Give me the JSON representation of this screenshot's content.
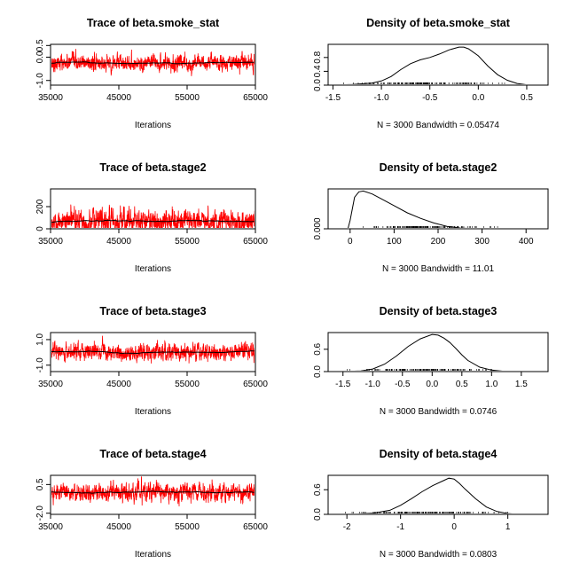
{
  "chart_data": [
    {
      "type": "line",
      "title": "Trace of beta.smoke_stat",
      "xlabel": "Iterations",
      "ylabel": "",
      "xlim": [
        35000,
        65000
      ],
      "ylim": [
        -1.2,
        0.55
      ],
      "xticks": [
        "35000",
        "45000",
        "55000",
        "65000"
      ],
      "yticks": [
        "-1.0",
        "0.0",
        "0.5"
      ],
      "series": [
        {
          "values": {
            "mean": -0.25,
            "sd": 0.2,
            "min": -1.1,
            "max": 0.5
          },
          "color": "#ff0000"
        }
      ],
      "trend_color": "#000000"
    },
    {
      "type": "line",
      "title": "Density of beta.smoke_stat",
      "xlabel": "N = 3000   Bandwidth = 0.05474",
      "ylabel": "",
      "xlim": [
        -1.55,
        0.72
      ],
      "ylim": [
        0,
        1.18
      ],
      "xticks": [
        "-1.5",
        "-1.0",
        "-0.5",
        "0.0",
        "0.5"
      ],
      "yticks": [
        "0.0",
        "0.4",
        "0.8"
      ],
      "series": [
        {
          "x": [
            -1.5,
            -1.3,
            -1.1,
            -1.0,
            -0.9,
            -0.8,
            -0.7,
            -0.6,
            -0.5,
            -0.4,
            -0.3,
            -0.2,
            -0.15,
            -0.1,
            0.0,
            0.1,
            0.2,
            0.3,
            0.4,
            0.5
          ],
          "y": [
            0.0,
            0.02,
            0.06,
            0.12,
            0.25,
            0.45,
            0.62,
            0.73,
            0.8,
            0.9,
            1.02,
            1.1,
            1.1,
            1.05,
            0.85,
            0.55,
            0.3,
            0.14,
            0.05,
            0.01
          ]
        }
      ]
    },
    {
      "type": "line",
      "title": "Trace of beta.stage2",
      "xlabel": "Iterations",
      "ylabel": "",
      "xlim": [
        35000,
        65000
      ],
      "ylim": [
        0,
        360
      ],
      "xticks": [
        "35000",
        "45000",
        "55000",
        "65000"
      ],
      "yticks": [
        "0",
        "200"
      ],
      "series": [
        {
          "values": {
            "mean": 70,
            "sd": 60,
            "min": 0,
            "max": 350
          },
          "color": "#ff0000"
        }
      ],
      "trend_color": "#000000"
    },
    {
      "type": "line",
      "title": "Density of beta.stage2",
      "xlabel": "N = 3000   Bandwidth = 11.01",
      "ylabel": "",
      "xlim": [
        -50,
        450
      ],
      "ylim": [
        0,
        0.0095
      ],
      "xticks": [
        "0",
        "100",
        "200",
        "300",
        "400"
      ],
      "yticks": [
        "0.000"
      ],
      "series": [
        {
          "x": [
            -5,
            0,
            10,
            20,
            30,
            50,
            70,
            100,
            130,
            160,
            190,
            220,
            250,
            280,
            300,
            350
          ],
          "y": [
            0.0,
            0.002,
            0.0075,
            0.0088,
            0.009,
            0.0083,
            0.0072,
            0.0055,
            0.0038,
            0.0025,
            0.0014,
            0.0006,
            0.0002,
            5e-05,
            0.0,
            0.0
          ]
        }
      ]
    },
    {
      "type": "line",
      "title": "Trace of beta.stage3",
      "xlabel": "Iterations",
      "ylabel": "",
      "xlim": [
        35000,
        65000
      ],
      "ylim": [
        -1.5,
        1.55
      ],
      "xticks": [
        "35000",
        "45000",
        "55000",
        "65000"
      ],
      "yticks": [
        "-1.0",
        "1.0"
      ],
      "series": [
        {
          "values": {
            "mean": 0.0,
            "sd": 0.38,
            "min": -1.2,
            "max": 1.3
          },
          "color": "#ff0000"
        }
      ],
      "trend_color": "#000000"
    },
    {
      "type": "line",
      "title": "Density of beta.stage3",
      "xlabel": "N = 3000   Bandwidth = 0.0746",
      "ylabel": "",
      "xlim": [
        -1.75,
        1.95
      ],
      "ylim": [
        0,
        1.05
      ],
      "xticks": [
        "-1.5",
        "-1.0",
        "-0.5",
        "0.0",
        "0.5",
        "1.0",
        "1.5"
      ],
      "yticks": [
        "0.0",
        "0.6"
      ],
      "series": [
        {
          "x": [
            -1.5,
            -1.2,
            -1.0,
            -0.8,
            -0.6,
            -0.4,
            -0.2,
            0.0,
            0.1,
            0.2,
            0.3,
            0.4,
            0.5,
            0.6,
            0.8,
            1.0,
            1.2,
            1.4
          ],
          "y": [
            0.0,
            0.02,
            0.07,
            0.2,
            0.42,
            0.68,
            0.88,
            1.0,
            0.98,
            0.9,
            0.78,
            0.62,
            0.45,
            0.3,
            0.12,
            0.04,
            0.01,
            0.0
          ]
        }
      ]
    },
    {
      "type": "line",
      "title": "Trace of beta.stage4",
      "xlabel": "Iterations",
      "ylabel": "",
      "xlim": [
        35000,
        65000
      ],
      "ylim": [
        -2.1,
        1.3
      ],
      "xticks": [
        "35000",
        "45000",
        "55000",
        "65000"
      ],
      "yticks": [
        "-2.0",
        "0.5"
      ],
      "series": [
        {
          "values": {
            "mean": -0.2,
            "sd": 0.45,
            "min": -2.0,
            "max": 1.2
          },
          "color": "#ff0000"
        }
      ],
      "trend_color": "#000000"
    },
    {
      "type": "line",
      "title": "Density of beta.stage4",
      "xlabel": "N = 3000   Bandwidth = 0.0803",
      "ylabel": "",
      "xlim": [
        -2.35,
        1.75
      ],
      "ylim": [
        0,
        0.95
      ],
      "xticks": [
        "-2",
        "-1",
        "0",
        "1"
      ],
      "yticks": [
        "0.0",
        "0.6"
      ],
      "series": [
        {
          "x": [
            -2.3,
            -1.8,
            -1.5,
            -1.2,
            -1.0,
            -0.8,
            -0.6,
            -0.4,
            -0.2,
            -0.1,
            0.0,
            0.1,
            0.2,
            0.4,
            0.6,
            0.8,
            1.0,
            1.2
          ],
          "y": [
            0.0,
            0.01,
            0.03,
            0.1,
            0.22,
            0.38,
            0.55,
            0.7,
            0.82,
            0.88,
            0.86,
            0.75,
            0.62,
            0.38,
            0.18,
            0.07,
            0.02,
            0.0
          ]
        }
      ]
    }
  ]
}
